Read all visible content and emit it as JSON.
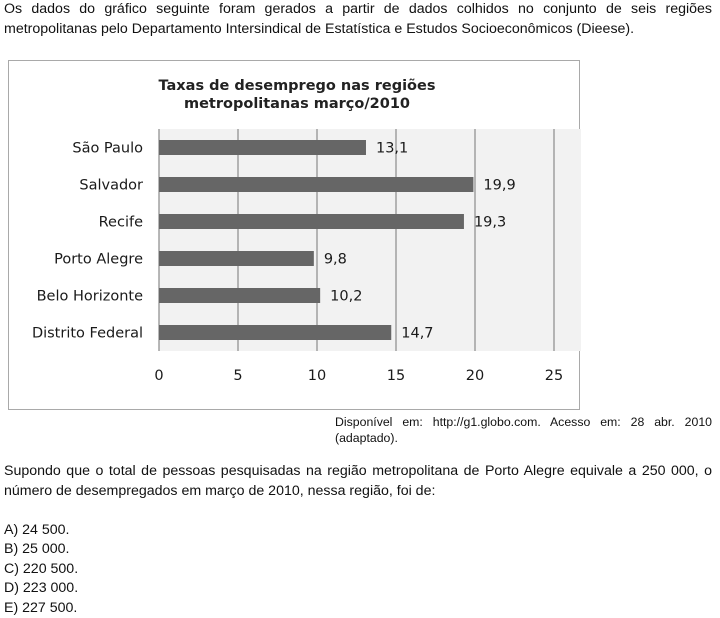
{
  "intro": "Os dados do gráfico seguinte foram gerados a partir de dados colhidos no conjunto de seis regiões metropolitanas pelo Departamento Intersindical de Estatística e Estudos Socioeconômicos (Dieese).",
  "chart_data": {
    "type": "bar",
    "orientation": "horizontal",
    "title_lines": [
      "Taxas de desemprego nas regiões",
      "metropolitanas março/2010"
    ],
    "categories": [
      "São Paulo",
      "Salvador",
      "Recife",
      "Porto Alegre",
      "Belo Horizonte",
      "Distrito Federal"
    ],
    "values": [
      13.1,
      19.9,
      19.3,
      9.8,
      10.2,
      14.7
    ],
    "value_labels": [
      "13,1",
      "19,9",
      "19,3",
      "9,8",
      "10,2",
      "14,7"
    ],
    "x_ticks": [
      "0",
      "5",
      "10",
      "15",
      "20",
      "25"
    ],
    "xlim": [
      0,
      25
    ],
    "grid": "vertical",
    "bar_color": "#666666",
    "plot_bg": "#f2f2f2"
  },
  "source": "Disponível em: http://g1.globo.com. Acesso em: 28 abr. 2010 (adaptado).",
  "question": "Supondo que o total de pessoas pesquisadas na região metropolitana de Porto Alegre equivale a 250 000, o número de desempregados em março de 2010, nessa região, foi de:",
  "options": [
    "A) 24 500.",
    "B) 25 000.",
    "C) 220 500.",
    "D) 223 000.",
    "E) 227 500."
  ]
}
